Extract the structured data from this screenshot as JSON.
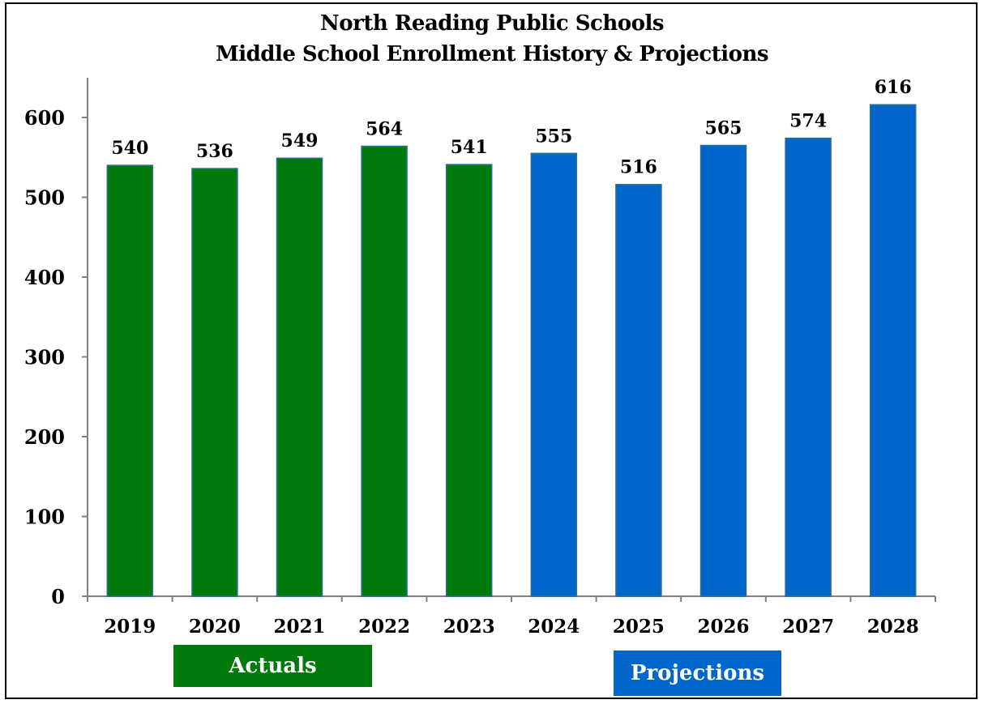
{
  "chart_data": {
    "type": "bar",
    "title": "North Reading Public Schools",
    "subtitle": "Middle School Enrollment History & Projections",
    "categories": [
      "2019",
      "2020",
      "2021",
      "2022",
      "2023",
      "2024",
      "2025",
      "2026",
      "2027",
      "2028"
    ],
    "values": [
      540,
      536,
      549,
      564,
      541,
      555,
      516,
      565,
      574,
      616
    ],
    "value_labels": [
      "540",
      "536",
      "549",
      "564",
      "541",
      "555",
      "516",
      "565",
      "574",
      "616"
    ],
    "bar_groups": [
      "Actuals",
      "Actuals",
      "Actuals",
      "Actuals",
      "Actuals",
      "Projections",
      "Projections",
      "Projections",
      "Projections",
      "Projections"
    ],
    "ylim": [
      0,
      600
    ],
    "yticks": [
      0,
      100,
      200,
      300,
      400,
      500,
      600
    ],
    "ytick_labels": [
      "0",
      "100",
      "200",
      "300",
      "400",
      "500",
      "600"
    ],
    "xlabel": "",
    "ylabel": "",
    "grid": false,
    "legend": [
      {
        "label": "Actuals",
        "color": "#007A0A"
      },
      {
        "label": "Projections",
        "color": "#0066CC"
      }
    ],
    "colors": {
      "Actuals": "#007A0A",
      "Projections": "#0066CC",
      "axis": "#808080"
    }
  }
}
